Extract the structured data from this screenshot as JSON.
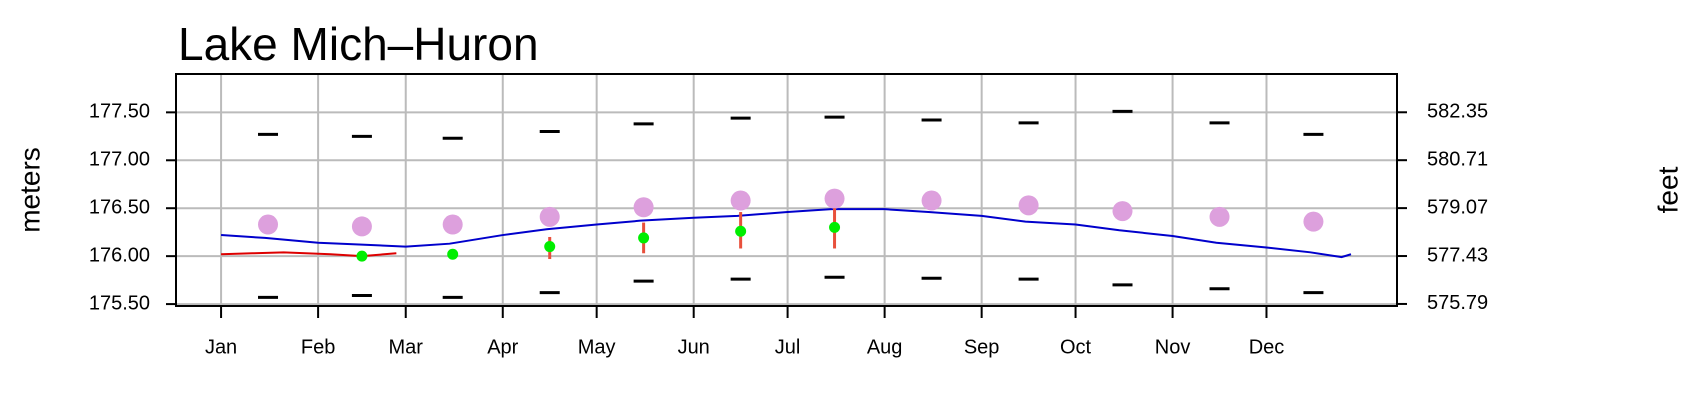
{
  "chart_data": {
    "type": "line",
    "title": "Lake Mich–Huron",
    "ylabel": "meters",
    "y2label": "feet",
    "xlim": [
      -14.4,
      375.7
    ],
    "xticks": [
      {
        "value": 0,
        "label": "Jan"
      },
      {
        "value": 31,
        "label": "Feb"
      },
      {
        "value": 59,
        "label": "Mar"
      },
      {
        "value": 90,
        "label": "Apr"
      },
      {
        "value": 120,
        "label": "May"
      },
      {
        "value": 151,
        "label": "Jun"
      },
      {
        "value": 181,
        "label": "Jul"
      },
      {
        "value": 212,
        "label": "Aug"
      },
      {
        "value": 243,
        "label": "Sep"
      },
      {
        "value": 273,
        "label": "Oct"
      },
      {
        "value": 304,
        "label": "Nov"
      },
      {
        "value": 334,
        "label": "Dec"
      }
    ],
    "ylim": [
      175.48,
      177.9
    ],
    "yticks": [
      {
        "value": 175.5,
        "label": "175.50"
      },
      {
        "value": 176,
        "label": "176.00"
      },
      {
        "value": 176.5,
        "label": "176.50"
      },
      {
        "value": 177,
        "label": "177.00"
      },
      {
        "value": 177.5,
        "label": "177.50"
      }
    ],
    "y2lim": [
      575.72,
      583.66
    ],
    "y2ticks": [
      575.79,
      577.43,
      579.07,
      580.71,
      582.35
    ],
    "grid": true,
    "series": [
      {
        "type": "line",
        "color": "#0000cc",
        "x": [
          0,
          14,
          31,
          45,
          59,
          73,
          90,
          104,
          120,
          134,
          151,
          165,
          181,
          195,
          212,
          226,
          243,
          257,
          273,
          287,
          304,
          318,
          334,
          348,
          358,
          361
        ],
        "values": [
          176.22,
          176.19,
          176.14,
          176.12,
          176.1,
          176.13,
          176.22,
          176.28,
          176.33,
          176.37,
          176.4,
          176.42,
          176.46,
          176.49,
          176.49,
          176.46,
          176.42,
          176.36,
          176.33,
          176.27,
          176.21,
          176.14,
          176.09,
          176.04,
          175.99,
          176.02
        ]
      },
      {
        "type": "line",
        "color": "#dd0000",
        "x": [
          0,
          10,
          20,
          35,
          45,
          56
        ],
        "values": [
          176.02,
          176.03,
          176.04,
          176.02,
          176.0,
          176.03
        ]
      },
      {
        "type": "circle",
        "color": "#dda0dd",
        "x": [
          15,
          45,
          74,
          105,
          135,
          166,
          196,
          227,
          258,
          288,
          319,
          349
        ],
        "values": [
          176.33,
          176.31,
          176.33,
          176.41,
          176.51,
          176.58,
          176.6,
          176.58,
          176.53,
          176.47,
          176.41,
          176.36
        ]
      },
      {
        "type": "dash",
        "color": "#000000",
        "x": [
          15,
          45,
          74,
          105,
          135,
          166,
          196,
          227,
          258,
          288,
          319,
          349
        ],
        "values": [
          177.27,
          177.25,
          177.23,
          177.3,
          177.38,
          177.44,
          177.45,
          177.42,
          177.39,
          177.51,
          177.39,
          177.27
        ]
      },
      {
        "type": "dash",
        "color": "#000000",
        "x": [
          15,
          45,
          74,
          105,
          135,
          166,
          196,
          227,
          258,
          288,
          319,
          349
        ],
        "values": [
          175.57,
          175.59,
          175.57,
          175.62,
          175.74,
          175.76,
          175.78,
          175.77,
          175.76,
          175.7,
          175.66,
          175.62
        ]
      },
      {
        "type": "range",
        "color": "#e8503c",
        "x": [
          45,
          74,
          105,
          135,
          166,
          196
        ],
        "low": [
          175.99,
          175.97,
          175.97,
          176.03,
          176.08,
          176.08
        ],
        "high": [
          176.01,
          176.05,
          176.2,
          176.35,
          176.46,
          176.5
        ]
      },
      {
        "type": "point",
        "color": "#00ee00",
        "x": [
          45,
          74,
          105,
          135,
          166,
          196
        ],
        "values": [
          176.0,
          176.02,
          176.1,
          176.19,
          176.26,
          176.3
        ]
      }
    ]
  }
}
